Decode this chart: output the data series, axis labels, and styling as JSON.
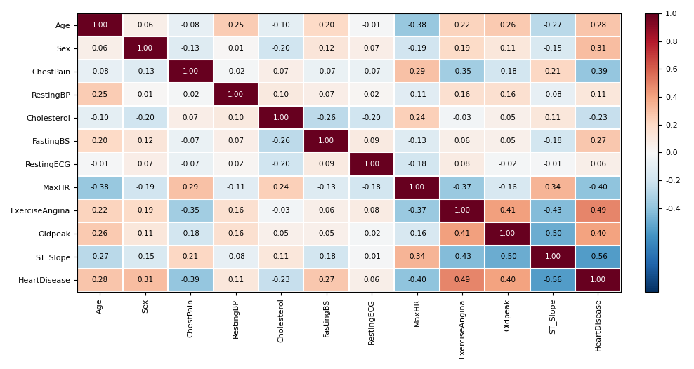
{
  "labels": [
    "Age",
    "Sex",
    "ChestPain",
    "RestingBP",
    "Cholesterol",
    "FastingBS",
    "RestingECG",
    "MaxHR",
    "ExerciseAngina",
    "Oldpeak",
    "ST_Slope",
    "HeartDisease"
  ],
  "matrix": [
    [
      1.0,
      0.06,
      -0.08,
      0.25,
      -0.1,
      0.2,
      -0.01,
      -0.38,
      0.22,
      0.26,
      -0.27,
      0.28
    ],
    [
      0.06,
      1.0,
      -0.13,
      0.01,
      -0.2,
      0.12,
      0.07,
      -0.19,
      0.19,
      0.11,
      -0.15,
      0.31
    ],
    [
      -0.08,
      -0.13,
      1.0,
      -0.02,
      0.07,
      -0.07,
      -0.07,
      0.29,
      -0.35,
      -0.18,
      0.21,
      -0.39
    ],
    [
      0.25,
      0.01,
      -0.02,
      1.0,
      0.1,
      0.07,
      0.02,
      -0.11,
      0.16,
      0.16,
      -0.08,
      0.11
    ],
    [
      -0.1,
      -0.2,
      0.07,
      0.1,
      1.0,
      -0.26,
      -0.2,
      0.24,
      -0.03,
      0.05,
      0.11,
      -0.23
    ],
    [
      0.2,
      0.12,
      -0.07,
      0.07,
      -0.26,
      1.0,
      0.09,
      -0.13,
      0.06,
      0.05,
      -0.18,
      0.27
    ],
    [
      -0.01,
      0.07,
      -0.07,
      0.02,
      -0.2,
      0.09,
      1.0,
      -0.18,
      0.08,
      -0.02,
      -0.01,
      0.06
    ],
    [
      -0.38,
      -0.19,
      0.29,
      -0.11,
      0.24,
      -0.13,
      -0.18,
      1.0,
      -0.37,
      -0.16,
      0.34,
      -0.4
    ],
    [
      0.22,
      0.19,
      -0.35,
      0.16,
      -0.03,
      0.06,
      0.08,
      -0.37,
      1.0,
      0.41,
      -0.43,
      0.49
    ],
    [
      0.26,
      0.11,
      -0.18,
      0.16,
      0.05,
      0.05,
      -0.02,
      -0.16,
      0.41,
      1.0,
      -0.5,
      0.4
    ],
    [
      -0.27,
      -0.15,
      0.21,
      -0.08,
      0.11,
      -0.18,
      -0.01,
      0.34,
      -0.43,
      -0.5,
      1.0,
      -0.56
    ],
    [
      0.28,
      0.31,
      -0.39,
      0.11,
      -0.23,
      0.27,
      0.06,
      -0.4,
      0.49,
      0.4,
      -0.56,
      1.0
    ]
  ],
  "cmap": "RdBu_r",
  "vmin": -1.0,
  "vmax": 1.0,
  "figsize": [
    9.88,
    5.26
  ],
  "dpi": 100,
  "font_size_annot": 7.5,
  "font_size_ticks": 8,
  "colorbar_ticks": [
    1.0,
    0.8,
    0.6,
    0.4,
    0.2,
    0.0,
    -0.2,
    -0.4
  ],
  "colorbar_tick_labels": [
    "1.0",
    "0.8",
    "0.6",
    "0.4",
    "0.2",
    "0.0",
    "-0.2",
    "-0.4"
  ]
}
